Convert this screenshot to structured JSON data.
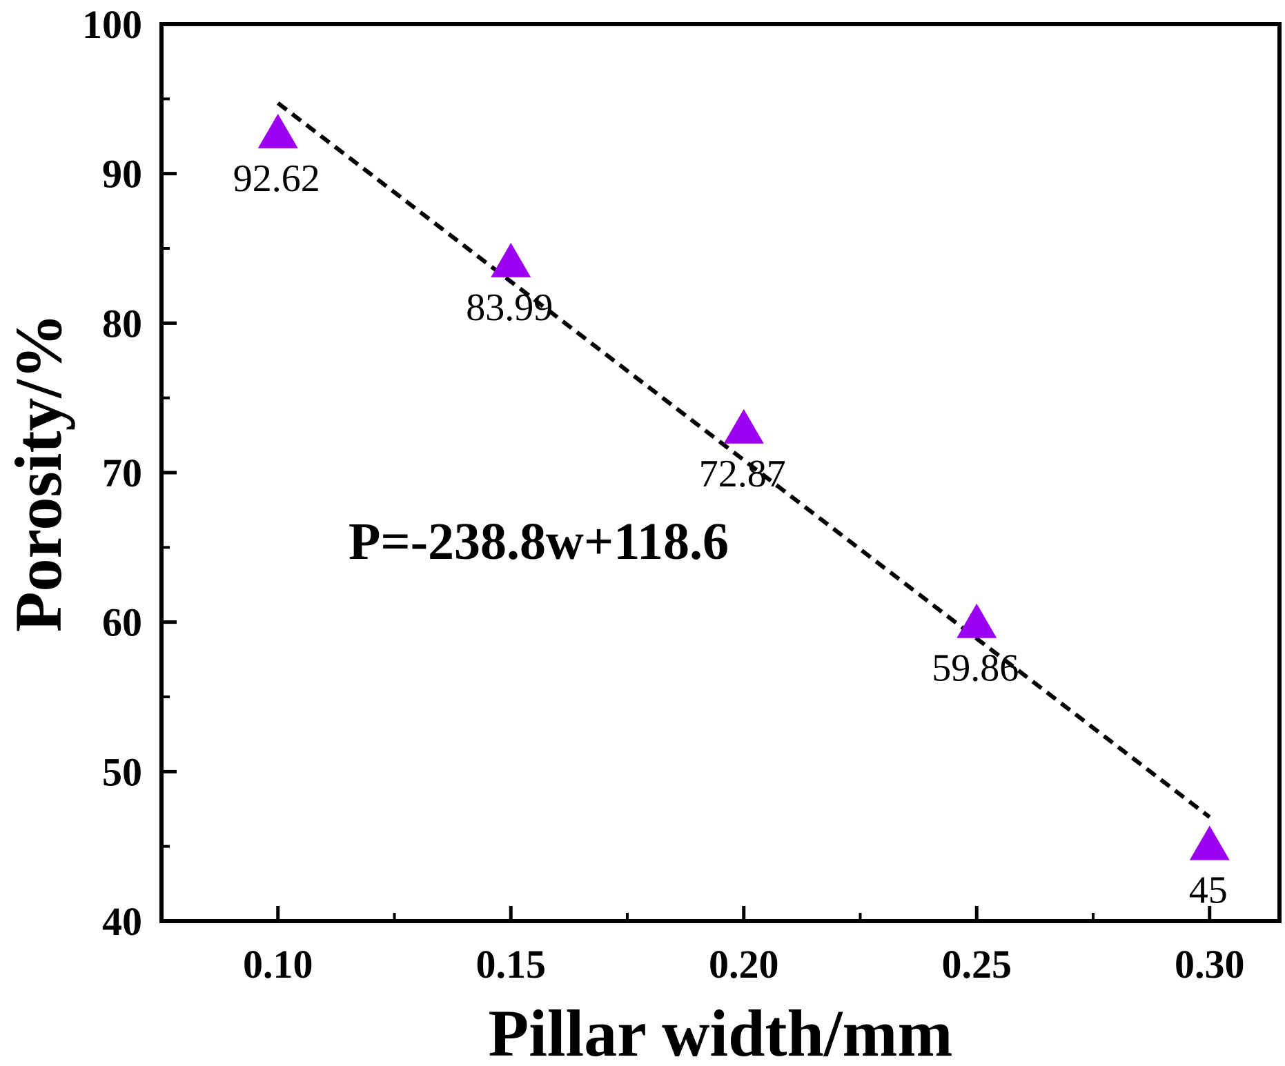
{
  "chart_data": {
    "type": "scatter",
    "xlabel": "Pillar width/mm",
    "ylabel": "Porosity/%",
    "xlim": [
      0.075,
      0.315
    ],
    "ylim": [
      40,
      100
    ],
    "x_ticks": [
      "0.10",
      "0.15",
      "0.20",
      "0.25",
      "0.30"
    ],
    "y_ticks": [
      "40",
      "50",
      "60",
      "70",
      "80",
      "90",
      "100"
    ],
    "grid": false,
    "series": [
      {
        "x": [
          0.1,
          0.15,
          0.2,
          0.25,
          0.3
        ],
        "y": [
          92.62,
          83.99,
          72.87,
          59.86,
          45
        ],
        "labels": [
          "92.62",
          "83.99",
          "72.87",
          "59.86",
          "45"
        ],
        "marker": "triangle",
        "color": "#9b00f0"
      }
    ],
    "fit_line": {
      "slope": -238.8,
      "intercept": 118.6,
      "x_range": [
        0.1,
        0.3
      ],
      "style": "dashed",
      "color": "#000000"
    },
    "annotation": "P=-238.8w+118.6"
  }
}
